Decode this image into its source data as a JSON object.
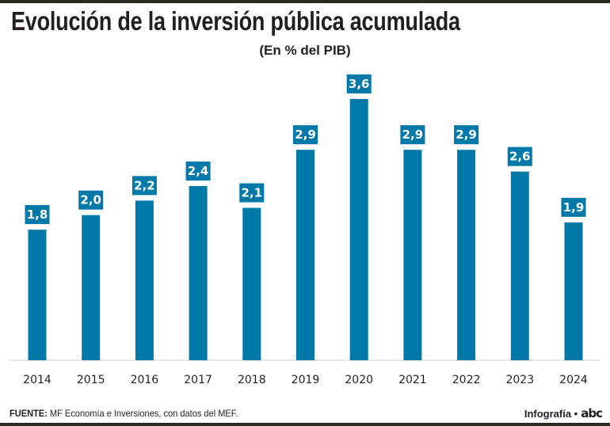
{
  "header": {
    "title": "Evolución de la inversión pública acumulada",
    "subtitle": "(En % del PIB)"
  },
  "footer": {
    "source_label": "FUENTE:",
    "source_text": " MF Economía e Inversiones, con datos del MEF.",
    "credit": "Infografía •",
    "logo": "abc"
  },
  "colors": {
    "bar": "#0078a8",
    "label_box": "#0078a8",
    "baseline": "#e0e0e0",
    "frame": "#2b2b24"
  },
  "chart_data": {
    "type": "bar",
    "title": "Evolución de la inversión pública acumulada",
    "subtitle": "(En % del PIB)",
    "xlabel": "",
    "ylabel": "",
    "categories": [
      "2014",
      "2015",
      "2016",
      "2017",
      "2018",
      "2019",
      "2020",
      "2021",
      "2022",
      "2023",
      "2024"
    ],
    "values": [
      1.8,
      2.0,
      2.2,
      2.4,
      2.1,
      2.9,
      3.6,
      2.9,
      2.9,
      2.6,
      1.9
    ],
    "value_labels": [
      "1,8",
      "2,0",
      "2,2",
      "2,4",
      "2,1",
      "2,9",
      "3,6",
      "2,9",
      "2,9",
      "2,6",
      "1,9"
    ],
    "ylim": [
      0,
      3.6
    ],
    "grid": false,
    "legend": "none"
  }
}
